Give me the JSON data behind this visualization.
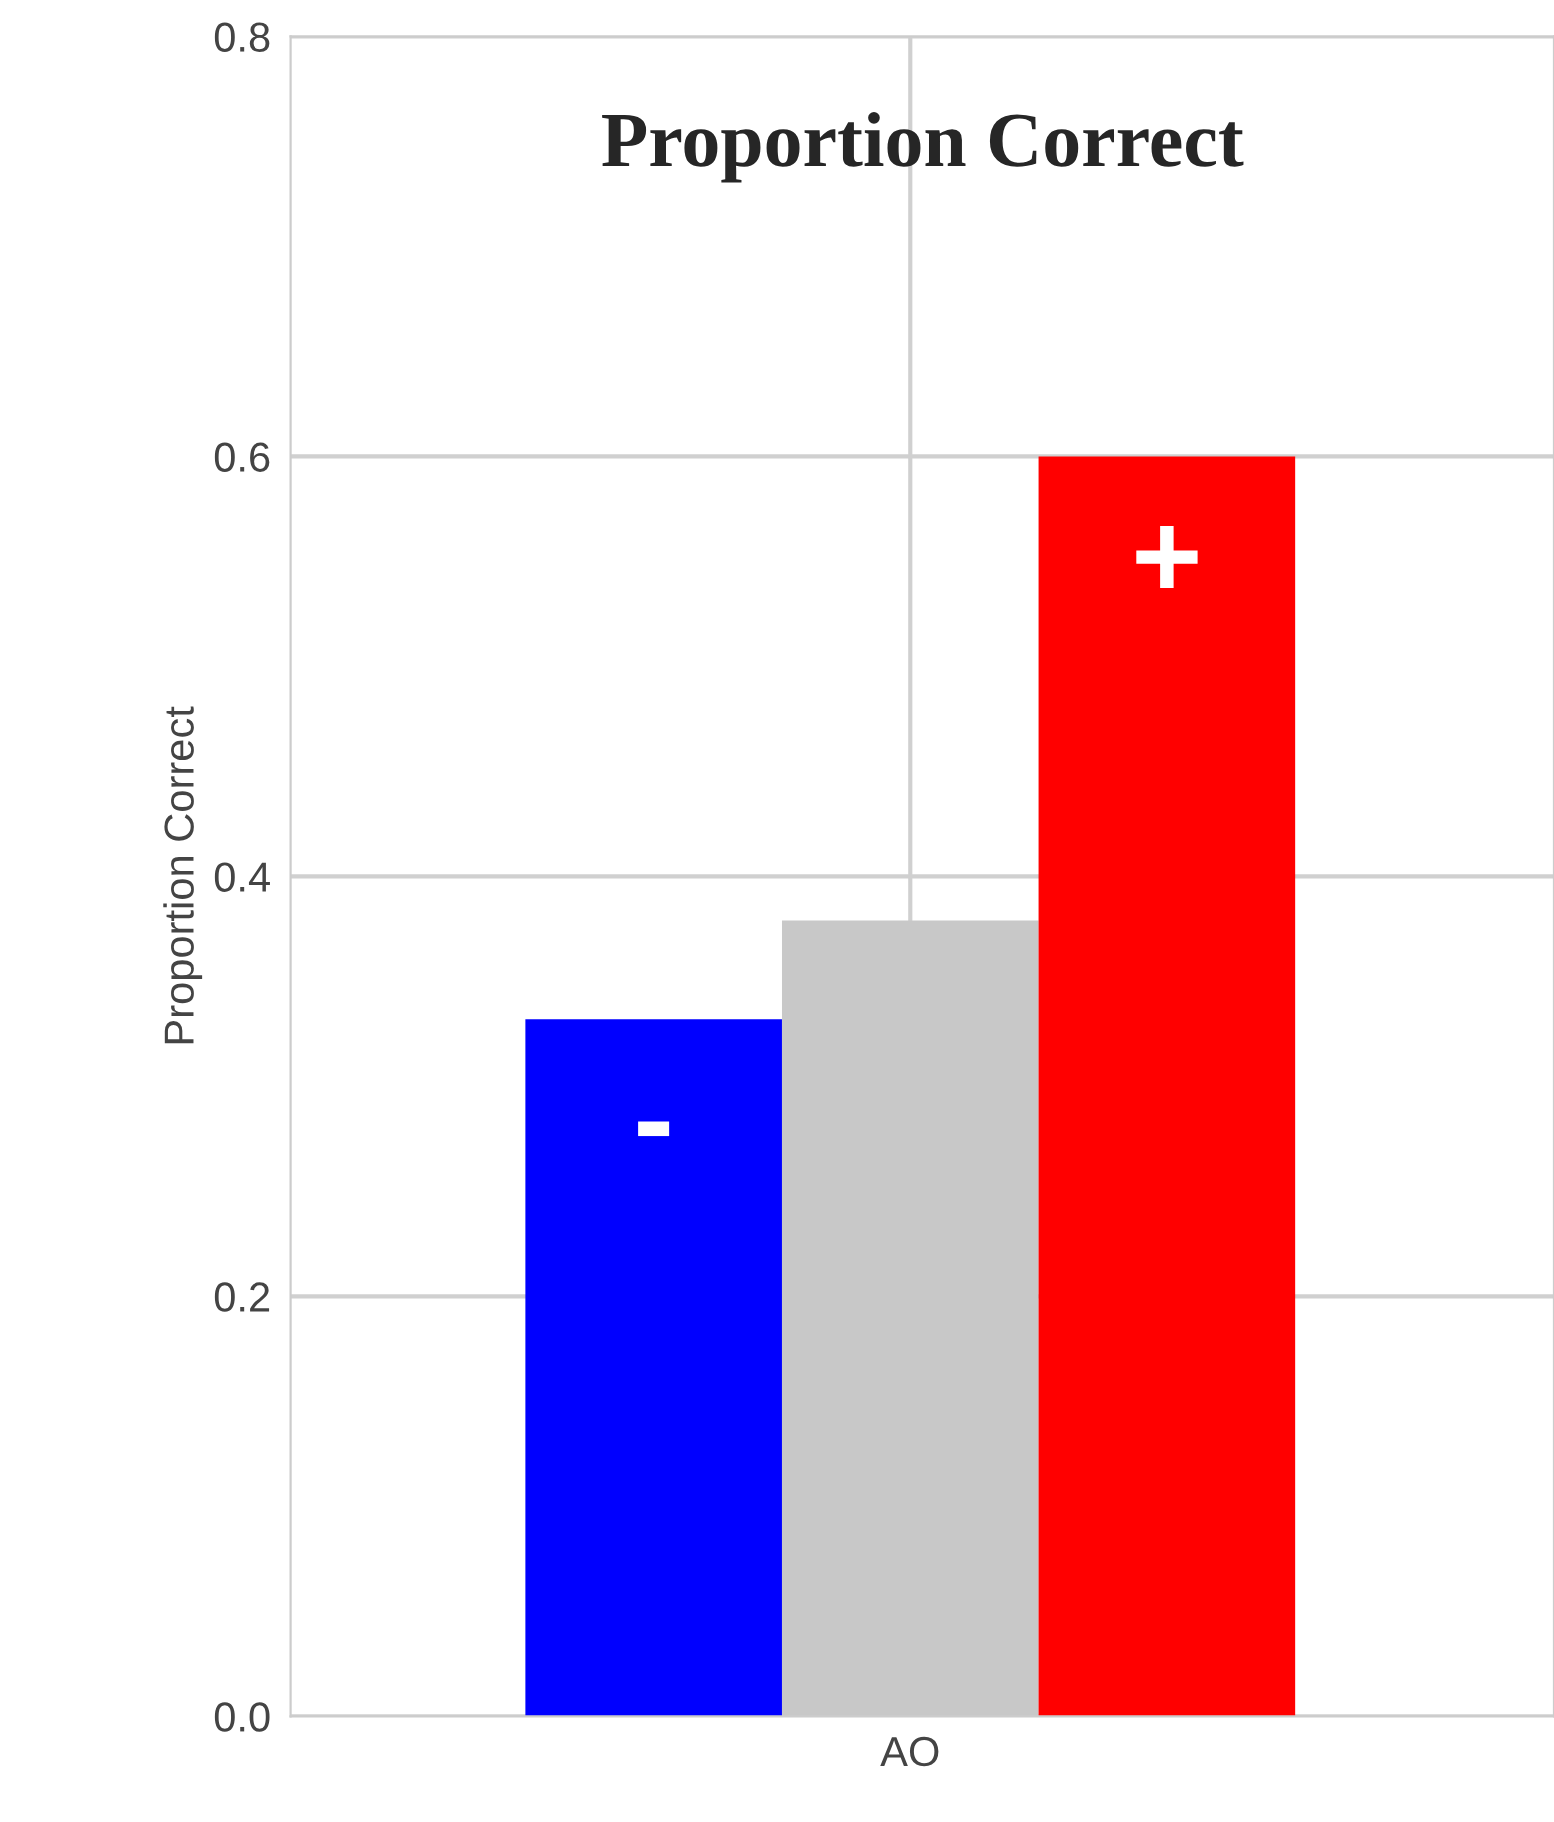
{
  "chart_data": {
    "type": "bar",
    "title": "Proportion Correct",
    "ylabel": "Proportion Correct",
    "categories": [
      "AO"
    ],
    "series": [
      {
        "color": "#0000ff",
        "values": [
          0.332
        ],
        "value_labels": [
          "-"
        ]
      },
      {
        "color": "#c8c8c8",
        "values": [
          0.379
        ],
        "value_labels": [
          null
        ]
      },
      {
        "color": "#ff0000",
        "values": [
          0.6
        ],
        "value_labels": [
          "+"
        ]
      }
    ],
    "ylim": [
      0,
      0.8
    ],
    "yticks": [
      {
        "value": 0,
        "label": "0.0"
      },
      {
        "value": 0.2,
        "label": "0.2"
      },
      {
        "value": 0.4,
        "label": "0.4"
      },
      {
        "value": 0.6,
        "label": "0.6"
      },
      {
        "value": 0.8,
        "label": "0.8"
      }
    ],
    "grid": true
  }
}
